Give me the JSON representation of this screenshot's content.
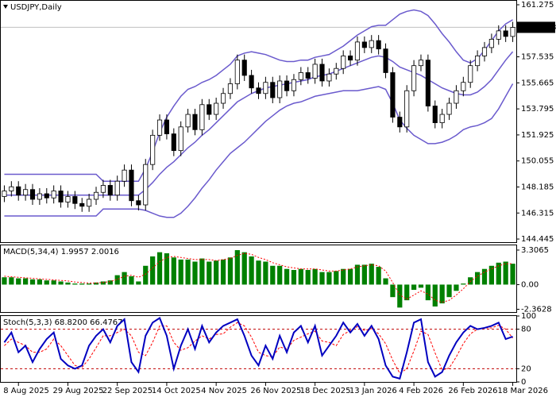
{
  "chart_data": [
    {
      "type": "candlestick",
      "title": "USDJPY,Daily",
      "categories": [
        null,
        null,
        "8 Aug 2025",
        null,
        null,
        null,
        null,
        null,
        null,
        "29 Aug 2025",
        null,
        null,
        null,
        null,
        null,
        null,
        "22 Sep 2025",
        null,
        null,
        null,
        null,
        null,
        null,
        "14 Oct 2025",
        null,
        null,
        null,
        null,
        null,
        null,
        "4 Nov 2025",
        null,
        null,
        null,
        null,
        null,
        null,
        "26 Nov 2025",
        null,
        null,
        null,
        null,
        null,
        null,
        "18 Dec 2025",
        null,
        null,
        null,
        null,
        null,
        null,
        "13 Jan 2026",
        null,
        null,
        null,
        null,
        null,
        null,
        "4 Feb 2026",
        null,
        null,
        null,
        null,
        null,
        null,
        "26 Feb 2026",
        null,
        null,
        null,
        null,
        null,
        null,
        "18 Mar 2026"
      ],
      "open": [
        147.5,
        147.9,
        148.2,
        147.6,
        148.0,
        147.3,
        147.7,
        147.4,
        147.9,
        147.1,
        147.5,
        147.0,
        146.8,
        147.3,
        147.8,
        148.3,
        147.6,
        148.6,
        149.4,
        147.2,
        146.9,
        149.8,
        151.9,
        153.0,
        152.0,
        150.8,
        152.5,
        153.4,
        152.3,
        154.1,
        153.4,
        154.2,
        154.9,
        155.6,
        157.3,
        156.2,
        155.3,
        154.9,
        155.7,
        154.6,
        155.8,
        155.1,
        155.9,
        156.4,
        156.0,
        157.0,
        155.8,
        156.3,
        156.7,
        157.6,
        157.3,
        158.6,
        158.2,
        158.7,
        158.1,
        156.4,
        153.2,
        152.5,
        155.1,
        156.9,
        157.3,
        154.0,
        152.8,
        153.4,
        154.2,
        155.1,
        155.7,
        156.9,
        157.6,
        158.2,
        158.8,
        159.4,
        159.0
      ],
      "high": [
        148.3,
        148.6,
        148.6,
        148.4,
        148.4,
        148.1,
        148.1,
        148.3,
        148.3,
        147.9,
        147.9,
        147.4,
        147.7,
        148.2,
        148.7,
        148.7,
        149.0,
        149.8,
        149.8,
        147.6,
        150.2,
        152.3,
        153.4,
        153.4,
        152.4,
        152.9,
        153.8,
        153.8,
        154.5,
        154.5,
        154.6,
        155.3,
        156.0,
        157.7,
        157.7,
        156.6,
        155.7,
        156.1,
        156.1,
        156.2,
        156.2,
        156.3,
        156.8,
        156.8,
        157.4,
        157.4,
        156.7,
        157.1,
        158.0,
        158.0,
        159.0,
        159.0,
        159.1,
        159.1,
        158.5,
        156.8,
        153.6,
        155.5,
        157.3,
        157.7,
        157.7,
        154.4,
        153.8,
        154.6,
        155.5,
        156.1,
        157.3,
        158.0,
        158.6,
        159.2,
        159.8,
        159.8,
        160.05
      ],
      "low": [
        147.1,
        147.5,
        147.2,
        147.2,
        146.9,
        146.9,
        147.0,
        147.0,
        146.7,
        146.7,
        146.6,
        146.4,
        146.4,
        146.9,
        147.4,
        147.2,
        147.2,
        148.2,
        146.8,
        146.5,
        146.5,
        149.4,
        151.5,
        151.6,
        150.4,
        150.4,
        152.1,
        151.9,
        151.9,
        153.0,
        153.0,
        153.8,
        154.5,
        155.2,
        155.8,
        154.9,
        154.5,
        154.5,
        154.2,
        154.2,
        154.7,
        154.7,
        155.5,
        155.6,
        155.6,
        155.4,
        155.4,
        155.9,
        156.3,
        156.9,
        156.9,
        157.8,
        157.8,
        157.7,
        156.0,
        152.8,
        152.1,
        152.1,
        154.7,
        156.5,
        153.6,
        152.4,
        152.4,
        153.0,
        153.8,
        154.7,
        155.3,
        156.5,
        157.2,
        157.8,
        158.4,
        158.6,
        158.6
      ],
      "close": [
        147.9,
        148.2,
        147.6,
        148.0,
        147.3,
        147.7,
        147.4,
        147.9,
        147.1,
        147.5,
        147.0,
        146.8,
        147.3,
        147.8,
        148.3,
        147.6,
        148.6,
        149.4,
        147.2,
        146.9,
        149.8,
        151.9,
        153.0,
        152.0,
        150.8,
        152.5,
        153.4,
        152.3,
        154.1,
        153.4,
        154.2,
        154.9,
        155.6,
        157.3,
        156.2,
        155.3,
        154.9,
        155.7,
        154.6,
        155.8,
        155.1,
        155.9,
        156.4,
        156.0,
        157.0,
        155.8,
        156.3,
        156.7,
        157.6,
        157.3,
        158.6,
        158.2,
        158.7,
        158.1,
        156.4,
        153.2,
        152.5,
        155.1,
        156.9,
        157.3,
        154.0,
        152.8,
        153.4,
        154.2,
        155.1,
        155.7,
        156.9,
        157.6,
        158.2,
        158.8,
        159.4,
        159.0,
        159.65
      ],
      "candle_color": "#000000",
      "bands": {
        "color": "#6a5acd",
        "upper": [
          149.1,
          149.1,
          149.1,
          149.1,
          149.1,
          149.1,
          149.1,
          149.1,
          149.1,
          149.1,
          149.1,
          149.1,
          149.1,
          149.1,
          148.6,
          148.6,
          148.6,
          148.6,
          148.6,
          148.6,
          149.5,
          150.7,
          152.1,
          153.2,
          154.0,
          154.7,
          155.2,
          155.4,
          155.7,
          155.9,
          156.2,
          156.6,
          157.0,
          157.6,
          157.8,
          157.9,
          157.8,
          157.7,
          157.5,
          157.3,
          157.2,
          157.2,
          157.3,
          157.3,
          157.5,
          157.6,
          157.7,
          158.0,
          158.3,
          158.7,
          159.1,
          159.4,
          159.7,
          159.8,
          159.8,
          160.2,
          160.6,
          160.8,
          160.9,
          160.8,
          160.5,
          159.9,
          159.2,
          158.6,
          157.9,
          157.3,
          157.1,
          157.4,
          158.0,
          158.7,
          159.4,
          159.9,
          160.2
        ],
        "middle": [
          147.6,
          147.6,
          147.6,
          147.6,
          147.6,
          147.6,
          147.6,
          147.6,
          147.6,
          147.6,
          147.6,
          147.6,
          147.6,
          147.6,
          147.6,
          147.6,
          147.6,
          147.6,
          147.6,
          147.6,
          148.0,
          148.5,
          149.1,
          149.6,
          150.0,
          150.5,
          151.0,
          151.4,
          151.9,
          152.3,
          152.8,
          153.3,
          153.8,
          154.3,
          154.6,
          154.9,
          155.1,
          155.3,
          155.4,
          155.5,
          155.6,
          155.7,
          155.8,
          155.9,
          156.1,
          156.2,
          156.3,
          156.5,
          156.7,
          156.9,
          157.1,
          157.3,
          157.5,
          157.6,
          157.5,
          157.2,
          156.8,
          156.6,
          156.4,
          156.2,
          155.9,
          155.6,
          155.3,
          155.1,
          154.9,
          154.8,
          154.8,
          155.0,
          155.4,
          155.9,
          156.6,
          157.3,
          157.9
        ],
        "lower": [
          146.1,
          146.1,
          146.1,
          146.1,
          146.1,
          146.1,
          146.1,
          146.1,
          146.1,
          146.1,
          146.1,
          146.1,
          146.1,
          146.1,
          146.6,
          146.6,
          146.6,
          146.6,
          146.6,
          146.6,
          146.5,
          146.3,
          146.1,
          146.0,
          146.0,
          146.3,
          146.8,
          147.4,
          148.1,
          148.7,
          149.4,
          150.0,
          150.6,
          151.0,
          151.4,
          151.9,
          152.4,
          152.9,
          153.3,
          153.7,
          154.0,
          154.2,
          154.3,
          154.5,
          154.7,
          154.8,
          154.9,
          155.0,
          155.1,
          155.1,
          155.1,
          155.2,
          155.3,
          155.4,
          155.2,
          154.2,
          153.0,
          152.4,
          151.9,
          151.6,
          151.3,
          151.3,
          151.4,
          151.6,
          151.9,
          152.3,
          152.5,
          152.6,
          152.8,
          153.1,
          153.8,
          154.7,
          155.6
        ]
      },
      "ylim": [
        144.22,
        161.56
      ],
      "yticks": [
        161.275,
        157.535,
        155.665,
        153.795,
        151.925,
        150.055,
        148.185,
        146.315,
        144.445
      ],
      "current_price": 159.653,
      "current_price_color": "#000000",
      "current_price_line_color": "#c0c0c0"
    },
    {
      "type": "macd",
      "title": "MACD(5,34,4) 1.9957 2.0016",
      "histogram": [
        0.7,
        0.7,
        0.6,
        0.6,
        0.5,
        0.5,
        0.4,
        0.4,
        0.3,
        0.2,
        0.1,
        0.1,
        0.1,
        0.2,
        0.3,
        0.4,
        0.9,
        1.2,
        0.8,
        0.3,
        1.8,
        2.7,
        3.1,
        3.0,
        2.6,
        2.4,
        2.4,
        2.2,
        2.5,
        2.2,
        2.3,
        2.4,
        2.6,
        3.3,
        3.1,
        2.7,
        2.3,
        2.2,
        1.8,
        1.8,
        1.5,
        1.4,
        1.5,
        1.4,
        1.5,
        1.2,
        1.2,
        1.3,
        1.5,
        1.5,
        1.9,
        1.9,
        2.0,
        1.7,
        0.6,
        -1.2,
        -2.2,
        -1.5,
        -0.5,
        -0.3,
        -1.5,
        -2.1,
        -1.8,
        -1.2,
        -0.6,
        0.1,
        0.7,
        1.2,
        1.5,
        1.8,
        2.1,
        2.2,
        2.0
      ],
      "signal": [
        0.8,
        0.75,
        0.7,
        0.65,
        0.6,
        0.55,
        0.5,
        0.45,
        0.4,
        0.35,
        0.25,
        0.2,
        0.15,
        0.15,
        0.2,
        0.3,
        0.5,
        0.8,
        0.9,
        0.7,
        1.0,
        1.6,
        2.2,
        2.6,
        2.7,
        2.6,
        2.5,
        2.4,
        2.4,
        2.4,
        2.3,
        2.4,
        2.5,
        2.8,
        3.0,
        2.9,
        2.6,
        2.4,
        2.1,
        1.9,
        1.7,
        1.6,
        1.5,
        1.5,
        1.5,
        1.4,
        1.3,
        1.3,
        1.4,
        1.5,
        1.7,
        1.8,
        1.9,
        1.8,
        1.3,
        0.2,
        -1.0,
        -1.4,
        -1.0,
        -0.6,
        -0.9,
        -1.5,
        -1.7,
        -1.5,
        -1.0,
        -0.4,
        0.3,
        0.8,
        1.2,
        1.5,
        1.8,
        2.0,
        2.0
      ],
      "histogram_color": "#008000",
      "signal_color": "#ff0000",
      "ylim": [
        -2.63,
        3.76
      ],
      "yticks": [
        3.3065,
        {
          "value": 0,
          "label": "0.00"
        },
        -2.3628
      ]
    },
    {
      "type": "stochastic",
      "title": "Stoch(5,3,3) 68.8200 66.4767",
      "main": [
        60,
        75,
        45,
        55,
        30,
        50,
        65,
        75,
        35,
        25,
        20,
        25,
        55,
        70,
        80,
        60,
        85,
        95,
        30,
        15,
        70,
        90,
        97,
        70,
        20,
        55,
        80,
        50,
        85,
        60,
        75,
        85,
        90,
        95,
        70,
        40,
        25,
        55,
        35,
        70,
        45,
        75,
        85,
        60,
        85,
        40,
        55,
        70,
        90,
        75,
        88,
        70,
        85,
        65,
        25,
        8,
        5,
        45,
        90,
        95,
        30,
        8,
        15,
        40,
        60,
        75,
        85,
        80,
        82,
        85,
        90,
        65,
        68.82
      ],
      "signal": [
        55,
        65,
        60,
        55,
        45,
        45,
        50,
        65,
        55,
        40,
        25,
        22,
        35,
        52,
        70,
        70,
        75,
        80,
        70,
        45,
        40,
        60,
        85,
        85,
        60,
        48,
        52,
        62,
        70,
        65,
        72,
        73,
        83,
        90,
        85,
        68,
        45,
        40,
        38,
        53,
        50,
        63,
        68,
        73,
        77,
        62,
        60,
        55,
        72,
        78,
        84,
        78,
        81,
        73,
        58,
        33,
        13,
        20,
        47,
        77,
        72,
        44,
        18,
        21,
        38,
        58,
        73,
        80,
        82,
        82,
        86,
        80,
        66.4767
      ],
      "main_color": "#0000c0",
      "signal_color": "#ff0000",
      "levels": [
        80,
        20
      ],
      "level_color": "#c00000",
      "ylim": [
        0,
        100
      ],
      "yticks": [
        100,
        80,
        20,
        0
      ]
    }
  ]
}
